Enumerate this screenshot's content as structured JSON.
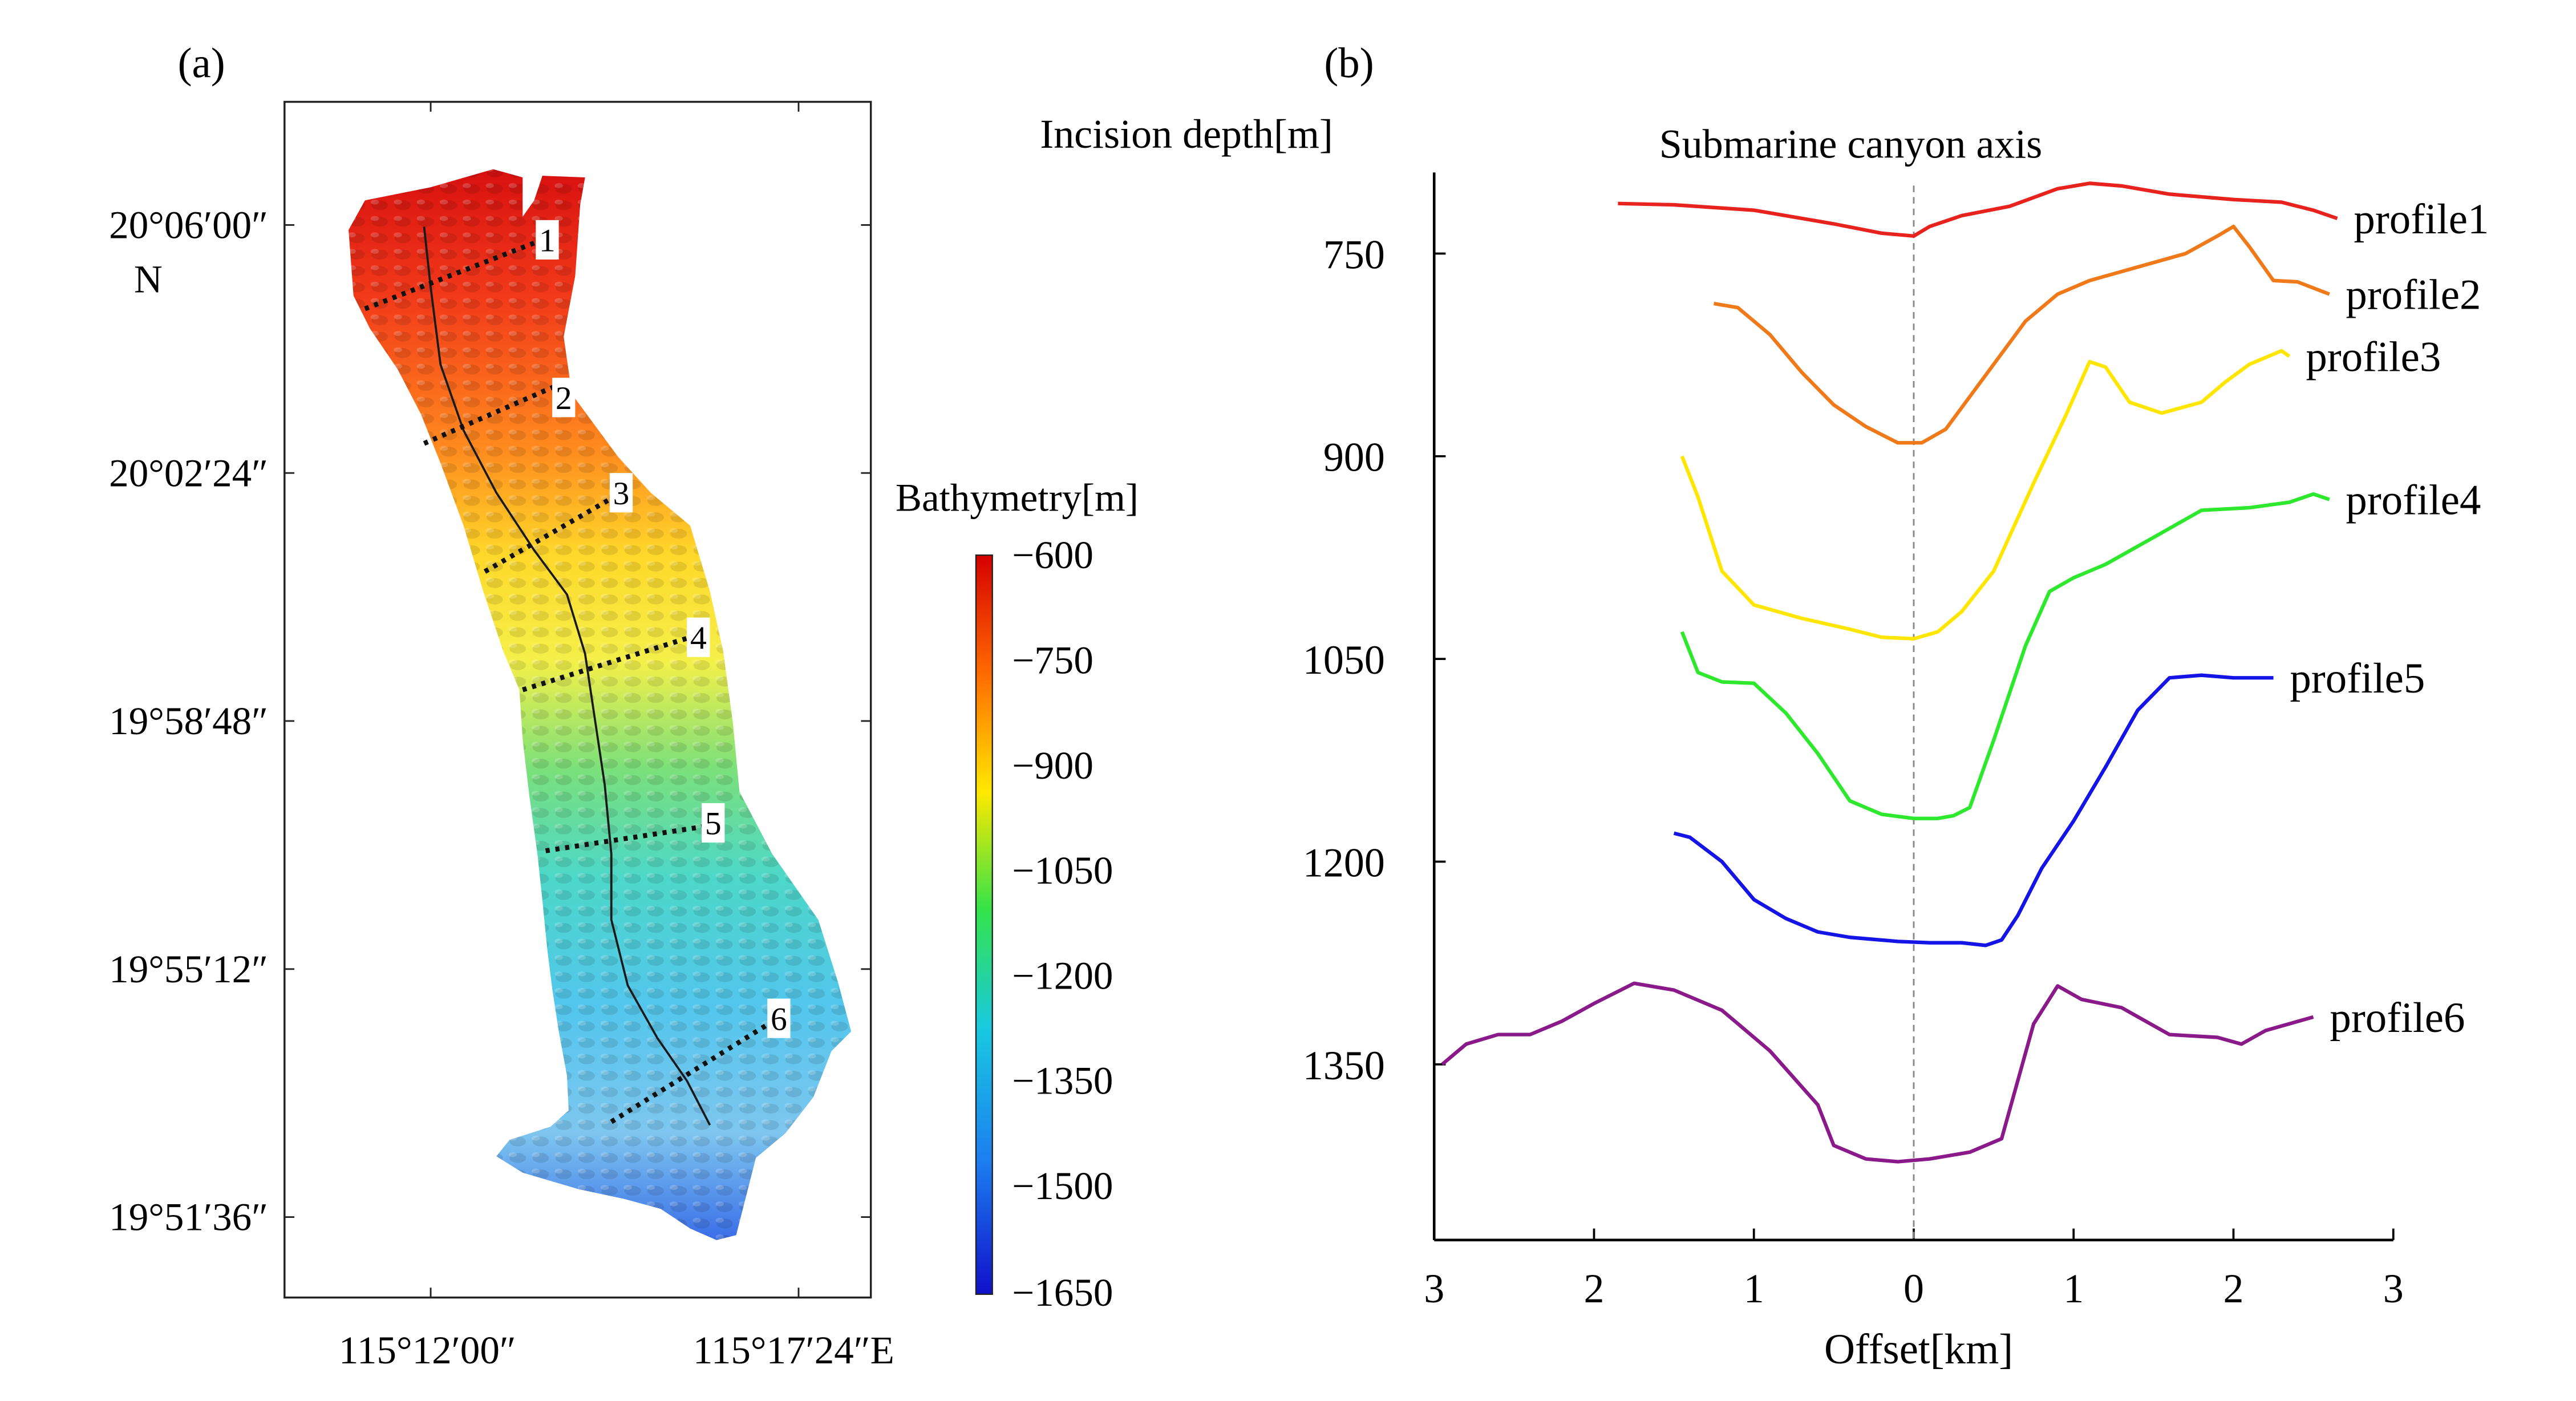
{
  "panel_a": {
    "label": "(a)",
    "lat_ticks": [
      "20°06′00″",
      "20°02′24″",
      "19°58′48″",
      "19°55′12″",
      "19°51′36″"
    ],
    "lat_n_label": "N",
    "lon_ticks": [
      "115°12′00″",
      "115°17′24″E"
    ],
    "profile_labels": [
      "1",
      "2",
      "3",
      "4",
      "5",
      "6"
    ],
    "colorbar": {
      "title": "Bathymetry[m]",
      "ticks": [
        "−600",
        "−750",
        "−900",
        "−1050",
        "−1200",
        "−1350",
        "−1500",
        "−1650"
      ],
      "colors": [
        "#d40000",
        "#ff6a00",
        "#ffe800",
        "#34e34a",
        "#19c9e0",
        "#1c7ef0",
        "#1010c8"
      ]
    }
  },
  "chart_data": {
    "type": "line",
    "label": "(b)",
    "title": "Submarine canyon axis",
    "xlabel": "Offset[km]",
    "ylabel": "Incision depth[m]",
    "xticks": [
      "3",
      "2",
      "1",
      "0",
      "1",
      "2",
      "3"
    ],
    "xlim": [
      -3,
      3
    ],
    "ylim": [
      1480,
      690
    ],
    "yticks": [
      750,
      900,
      1050,
      1200,
      1350
    ],
    "series": [
      {
        "name": "profile1",
        "color": "#e8221c",
        "x": [
          -1.85,
          -1.5,
          -1.0,
          -0.5,
          -0.2,
          0,
          0.1,
          0.3,
          0.6,
          0.9,
          1.1,
          1.3,
          1.6,
          2.0,
          2.3,
          2.5,
          2.65
        ],
        "y": [
          713,
          714,
          718,
          728,
          735,
          737,
          730,
          722,
          715,
          702,
          698,
          700,
          706,
          710,
          712,
          718,
          724
        ]
      },
      {
        "name": "profile2",
        "color": "#f07a1a",
        "x": [
          -1.25,
          -1.1,
          -0.9,
          -0.7,
          -0.5,
          -0.3,
          -0.1,
          0.05,
          0.2,
          0.45,
          0.7,
          0.9,
          1.1,
          1.4,
          1.7,
          1.9,
          2.0,
          2.1,
          2.25,
          2.4,
          2.6
        ],
        "y": [
          787,
          790,
          810,
          838,
          862,
          878,
          890,
          890,
          880,
          840,
          800,
          780,
          770,
          760,
          750,
          737,
          730,
          745,
          770,
          771,
          780
        ]
      },
      {
        "name": "profile3",
        "color": "#ffe600",
        "x": [
          -1.45,
          -1.35,
          -1.2,
          -1.0,
          -0.7,
          -0.4,
          -0.2,
          0,
          0.15,
          0.3,
          0.5,
          0.75,
          0.95,
          1.1,
          1.2,
          1.35,
          1.55,
          1.8,
          1.95,
          2.1,
          2.3,
          2.35
        ],
        "y": [
          900,
          930,
          985,
          1010,
          1020,
          1028,
          1034,
          1035,
          1030,
          1015,
          985,
          920,
          870,
          830,
          834,
          860,
          868,
          860,
          845,
          832,
          822,
          826
        ]
      },
      {
        "name": "profile4",
        "color": "#2ee82e",
        "x": [
          -1.45,
          -1.35,
          -1.2,
          -1.0,
          -0.8,
          -0.6,
          -0.4,
          -0.2,
          0,
          0.15,
          0.25,
          0.35,
          0.5,
          0.7,
          0.85,
          1.0,
          1.2,
          1.5,
          1.8,
          2.1,
          2.35,
          2.5,
          2.6
        ],
        "y": [
          1030,
          1060,
          1067,
          1068,
          1090,
          1120,
          1155,
          1165,
          1168,
          1168,
          1166,
          1160,
          1110,
          1040,
          1000,
          990,
          980,
          960,
          940,
          938,
          934,
          928,
          932
        ]
      },
      {
        "name": "profile5",
        "color": "#1414e6",
        "x": [
          -1.5,
          -1.4,
          -1.2,
          -1.0,
          -0.8,
          -0.6,
          -0.4,
          -0.1,
          0.1,
          0.3,
          0.45,
          0.55,
          0.65,
          0.8,
          1.0,
          1.2,
          1.4,
          1.6,
          1.8,
          2.0,
          2.25
        ],
        "y": [
          1179,
          1182,
          1200,
          1228,
          1242,
          1252,
          1256,
          1259,
          1260,
          1260,
          1262,
          1258,
          1240,
          1205,
          1170,
          1130,
          1088,
          1064,
          1062,
          1064,
          1064
        ]
      },
      {
        "name": "profile6",
        "color": "#8a1a8a",
        "x": [
          -2.95,
          -2.8,
          -2.6,
          -2.4,
          -2.2,
          -2.0,
          -1.75,
          -1.5,
          -1.2,
          -0.9,
          -0.6,
          -0.5,
          -0.3,
          -0.1,
          0.1,
          0.35,
          0.55,
          0.75,
          0.9,
          1.05,
          1.3,
          1.6,
          1.9,
          2.05,
          2.2,
          2.5
        ],
        "y": [
          1350,
          1335,
          1328,
          1328,
          1318,
          1305,
          1290,
          1295,
          1310,
          1340,
          1380,
          1410,
          1420,
          1422,
          1420,
          1415,
          1405,
          1320,
          1292,
          1302,
          1308,
          1328,
          1330,
          1335,
          1325,
          1315
        ]
      }
    ]
  }
}
